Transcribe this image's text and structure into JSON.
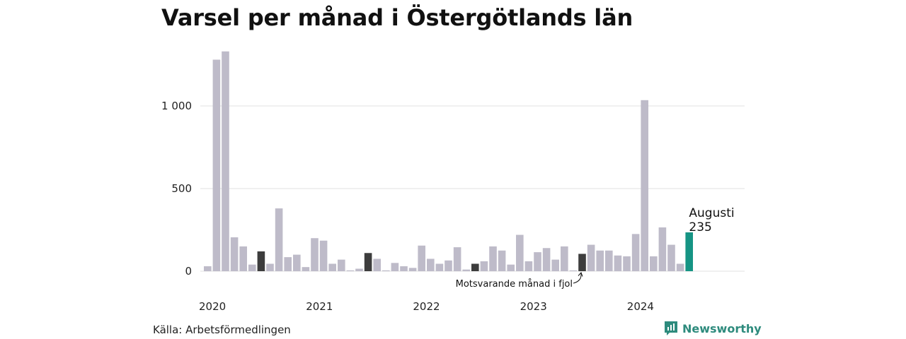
{
  "chart_data": {
    "type": "bar",
    "title": "Varsel per månad i Östergötlands län",
    "source": "Källa: Arbetsförmedlingen",
    "brand": "Newsworthy",
    "ylim": [
      0,
      1350
    ],
    "yticks": [
      0,
      500,
      1000
    ],
    "ytick_labels": [
      "0",
      "500",
      "1 000"
    ],
    "year_labels": [
      "2020",
      "2021",
      "2022",
      "2023",
      "2024"
    ],
    "grid": true,
    "colors": {
      "default": "#bebbc9",
      "same_month_previous_years": "#3d3d3d",
      "highlight": "#169484",
      "grid": "#e2e2e2"
    },
    "values": [
      30,
      1280,
      1330,
      205,
      150,
      40,
      120,
      45,
      380,
      85,
      100,
      25,
      200,
      185,
      45,
      70,
      5,
      15,
      110,
      75,
      5,
      50,
      30,
      20,
      155,
      75,
      45,
      65,
      145,
      10,
      45,
      60,
      150,
      125,
      40,
      220,
      60,
      115,
      140,
      70,
      150,
      5,
      105,
      160,
      125,
      125,
      95,
      90,
      225,
      1035,
      90,
      265,
      160,
      45,
      235
    ],
    "dark_indices": [
      6,
      18,
      30,
      42
    ],
    "highlight_index": 54,
    "highlight_label": {
      "month": "Augusti",
      "value": "235"
    },
    "annotation": {
      "text": "Motsvarande månad i fjol",
      "target_index": 42
    }
  }
}
